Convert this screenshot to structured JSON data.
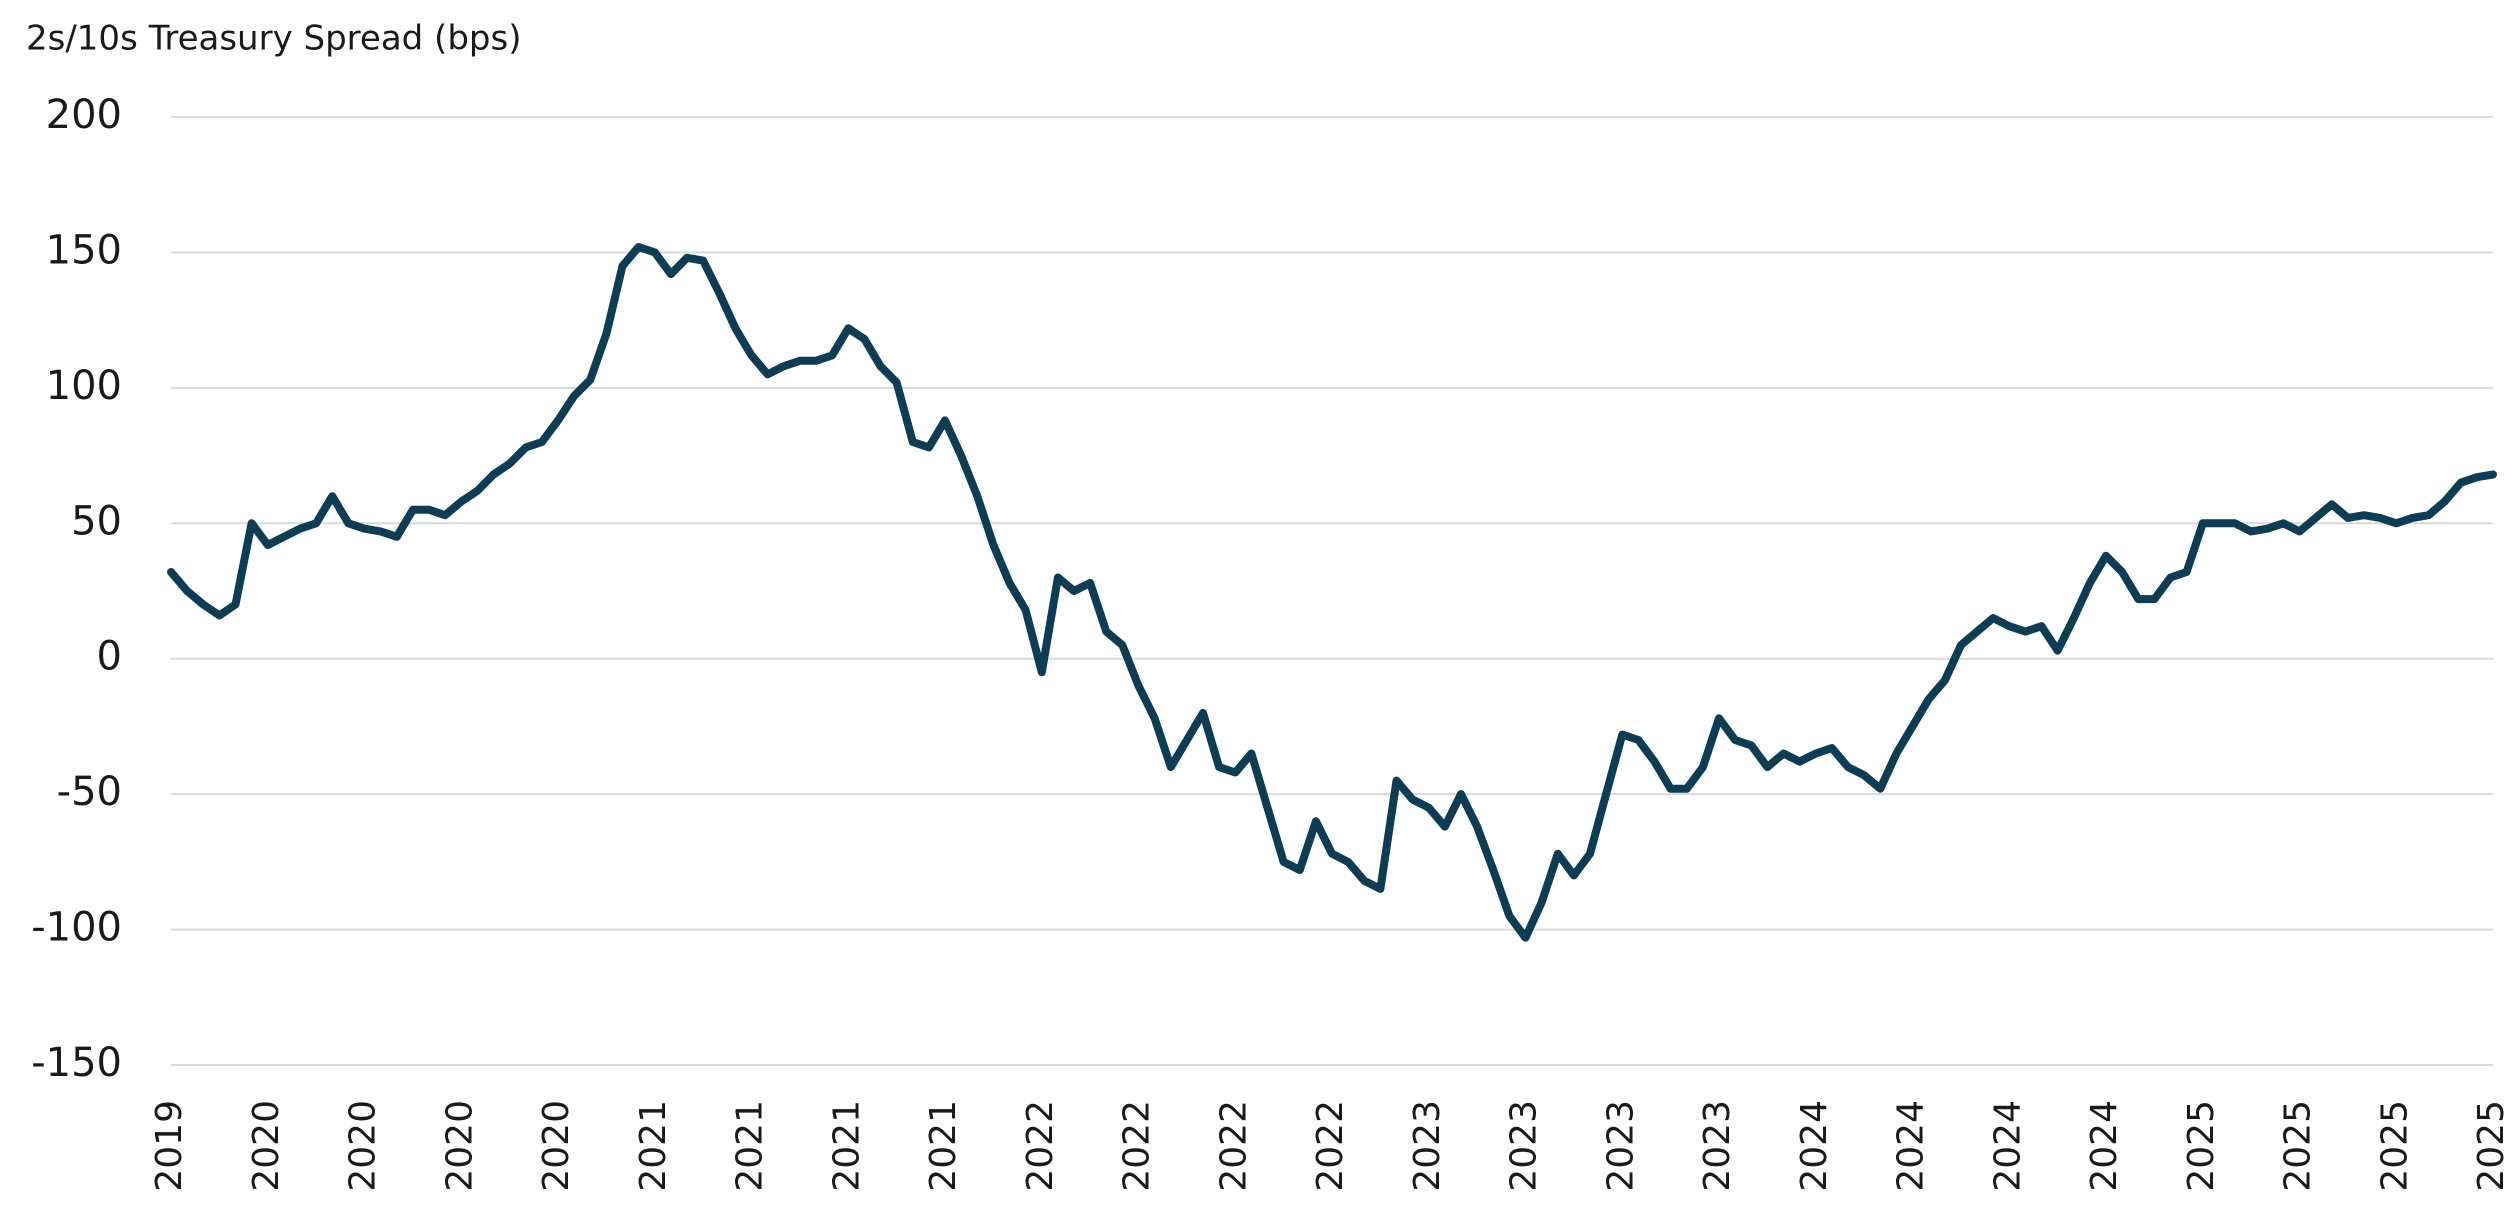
{
  "chart_data": {
    "type": "line",
    "title": "2s/10s Treasury Spread (bps)",
    "categories": [
      "2019",
      null,
      null,
      null,
      null,
      null,
      "2020",
      null,
      null,
      null,
      null,
      null,
      "2020",
      null,
      null,
      null,
      null,
      null,
      "2020",
      null,
      null,
      null,
      null,
      null,
      "2020",
      null,
      null,
      null,
      null,
      null,
      "2021",
      null,
      null,
      null,
      null,
      null,
      "2021",
      null,
      null,
      null,
      null,
      null,
      "2021",
      null,
      null,
      null,
      null,
      null,
      "2021",
      null,
      null,
      null,
      null,
      null,
      "2022",
      null,
      null,
      null,
      null,
      null,
      "2022",
      null,
      null,
      null,
      null,
      null,
      "2022",
      null,
      null,
      null,
      null,
      null,
      "2022",
      null,
      null,
      null,
      null,
      null,
      "2023",
      null,
      null,
      null,
      null,
      null,
      "2023",
      null,
      null,
      null,
      null,
      null,
      "2023",
      null,
      null,
      null,
      null,
      null,
      "2023",
      null,
      null,
      null,
      null,
      null,
      "2024",
      null,
      null,
      null,
      null,
      null,
      "2024",
      null,
      null,
      null,
      null,
      null,
      "2024",
      null,
      null,
      null,
      null,
      null,
      "2024",
      null,
      null,
      null,
      null,
      null,
      "2025",
      null,
      null,
      null,
      null,
      null,
      "2025",
      null,
      null,
      null,
      null,
      null,
      "2025",
      null,
      null,
      null,
      null,
      null,
      "2025"
    ],
    "series": [
      {
        "color": "#0d3c55",
        "values": [
          32,
          25,
          20,
          16,
          20,
          50,
          42,
          45,
          48,
          50,
          60,
          50,
          48,
          47,
          45,
          55,
          55,
          53,
          58,
          62,
          68,
          72,
          78,
          80,
          88,
          97,
          103,
          120,
          145,
          152,
          150,
          142,
          148,
          147,
          135,
          122,
          112,
          105,
          108,
          110,
          110,
          112,
          122,
          118,
          108,
          102,
          80,
          78,
          88,
          75,
          60,
          42,
          28,
          18,
          -5,
          30,
          25,
          28,
          10,
          5,
          -10,
          -22,
          -40,
          -30,
          -20,
          -40,
          -42,
          -35,
          -55,
          -75,
          -78,
          -60,
          -72,
          -75,
          -82,
          -85,
          -45,
          -52,
          -55,
          -62,
          -50,
          -62,
          -78,
          -95,
          -103,
          -90,
          -72,
          -80,
          -72,
          -50,
          -28,
          -30,
          -38,
          -48,
          -48,
          -40,
          -22,
          -30,
          -32,
          -40,
          -35,
          -38,
          -35,
          -33,
          -40,
          -43,
          -48,
          -35,
          -25,
          -15,
          -8,
          5,
          10,
          15,
          12,
          10,
          12,
          3,
          15,
          28,
          38,
          32,
          22,
          22,
          30,
          32,
          50,
          50,
          50,
          47,
          48,
          50,
          47,
          52,
          57,
          52,
          53,
          52,
          50,
          52,
          53,
          58,
          65,
          67,
          68
        ]
      }
    ],
    "ylim": [
      -150,
      200
    ],
    "yticks": [
      -150,
      -100,
      -50,
      0,
      50,
      100,
      150,
      200
    ],
    "grid": true
  }
}
